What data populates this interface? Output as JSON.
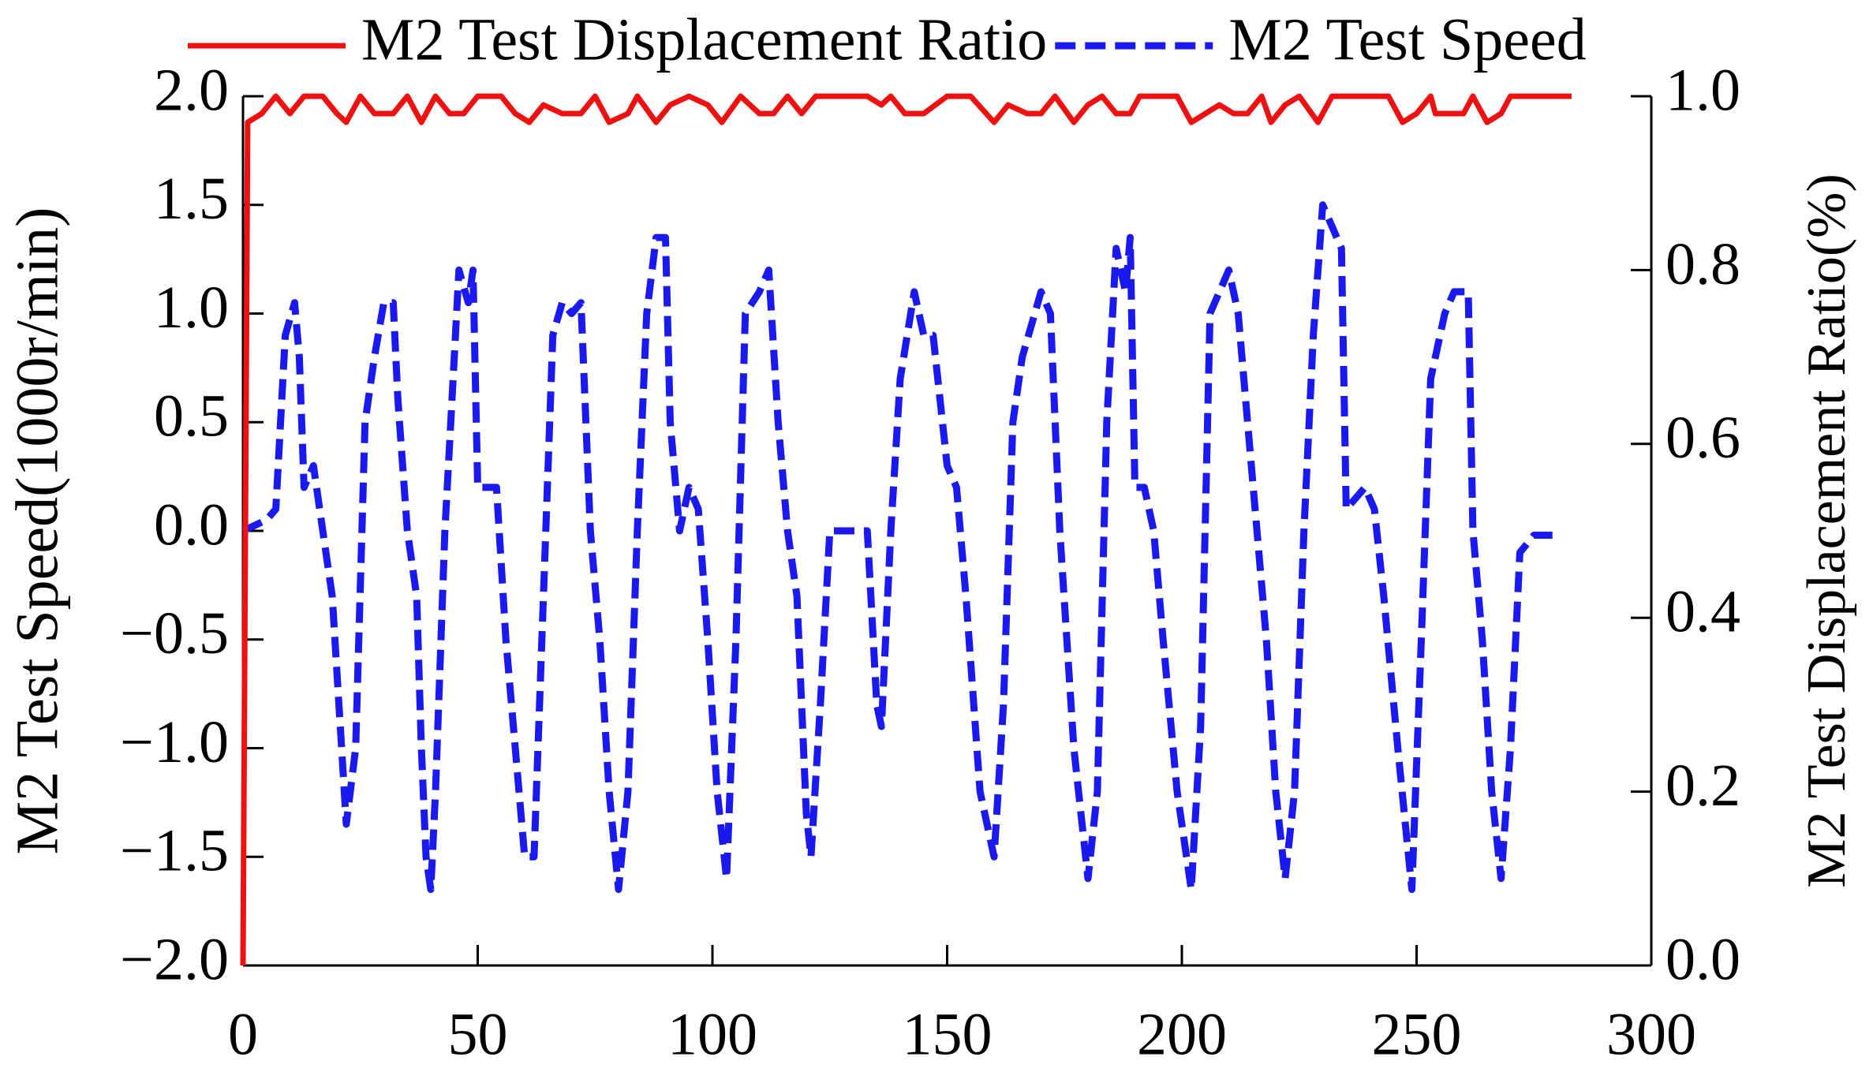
{
  "chart_data": {
    "type": "line",
    "ylabel": "M2 Test Speed(1000r/min)",
    "y2label": "M2 Test Displacement Ratio(%)",
    "xlim": [
      0,
      300
    ],
    "xticks": [
      0,
      50,
      100,
      150,
      200,
      250,
      300
    ],
    "ylim": [
      -2,
      2
    ],
    "yticks": [
      {
        "value": -2,
        "label": "−2.0"
      },
      {
        "value": -1.5,
        "label": "−1.5"
      },
      {
        "value": -1,
        "label": "−1.0"
      },
      {
        "value": -0.5,
        "label": "−0.5"
      },
      {
        "value": 0,
        "label": "0.0"
      },
      {
        "value": 0.5,
        "label": "0.5"
      },
      {
        "value": 1,
        "label": "1.0"
      },
      {
        "value": 1.5,
        "label": "1.5"
      },
      {
        "value": 2,
        "label": "2.0"
      }
    ],
    "y2lim": [
      0,
      1
    ],
    "y2ticks": [
      {
        "value": 0,
        "label": "0.0"
      },
      {
        "value": 0.2,
        "label": "0.2"
      },
      {
        "value": 0.4,
        "label": "0.4"
      },
      {
        "value": 0.6,
        "label": "0.6"
      },
      {
        "value": 0.8,
        "label": "0.8"
      },
      {
        "value": 1,
        "label": "1.0"
      }
    ],
    "legend": "top",
    "series": [
      {
        "name": "M2 Test Displacement Ratio",
        "color": "#ee1111",
        "line_style": "solid",
        "axis": "y2",
        "x": [
          0,
          1,
          4,
          7,
          10,
          13,
          17,
          20,
          22,
          25,
          28,
          32,
          35,
          38,
          41,
          44,
          47,
          50,
          55,
          58,
          61,
          64,
          68,
          72,
          75,
          78,
          82,
          84,
          88,
          91,
          95,
          99,
          102,
          106,
          110,
          113,
          116,
          119,
          122,
          126,
          133,
          136,
          138,
          141,
          145,
          150,
          155,
          160,
          163,
          167,
          170,
          173,
          177,
          180,
          183,
          186,
          189,
          191,
          195,
          199,
          202,
          205,
          208,
          211,
          214,
          217,
          219,
          222,
          225,
          229,
          232,
          236,
          240,
          244,
          247,
          250,
          253,
          254,
          260,
          262,
          265,
          268,
          270,
          283
        ],
        "values": [
          0,
          0.97,
          0.98,
          1.0,
          0.98,
          1.0,
          1.0,
          0.98,
          0.97,
          1.0,
          0.98,
          0.98,
          1.0,
          0.97,
          1.0,
          0.98,
          0.98,
          1.0,
          1.0,
          0.98,
          0.97,
          0.99,
          0.98,
          0.98,
          1.0,
          0.97,
          0.98,
          1.0,
          0.97,
          0.99,
          1.0,
          0.99,
          0.97,
          1.0,
          0.98,
          0.98,
          1.0,
          0.98,
          1.0,
          1.0,
          1.0,
          0.99,
          1.0,
          0.98,
          0.98,
          1.0,
          1.0,
          0.97,
          0.99,
          0.98,
          0.98,
          1.0,
          0.97,
          0.99,
          1.0,
          0.98,
          0.98,
          1.0,
          1.0,
          1.0,
          0.97,
          0.98,
          0.99,
          0.98,
          0.98,
          1.0,
          0.97,
          0.99,
          1.0,
          0.97,
          1.0,
          1.0,
          1.0,
          1.0,
          0.97,
          0.98,
          1.0,
          0.98,
          0.98,
          1.0,
          0.97,
          0.98,
          1.0,
          1.0
        ]
      },
      {
        "name": "M2 Test Speed",
        "color": "#1a1aee",
        "line_style": "dashed",
        "x": [
          0,
          5,
          7,
          9,
          11,
          12,
          13,
          15,
          17,
          19,
          21,
          22,
          24,
          26,
          28,
          30,
          32,
          33,
          35,
          37,
          38,
          39,
          40,
          41,
          43,
          45,
          46,
          48,
          49,
          50,
          52,
          54,
          56,
          58,
          60,
          62,
          64,
          66,
          68,
          70,
          72,
          74,
          76,
          78,
          80,
          82,
          84,
          86,
          88,
          90,
          91,
          93,
          95,
          97,
          99,
          101,
          103,
          105,
          107,
          110,
          112,
          114,
          116,
          118,
          120,
          121,
          123,
          125,
          127,
          133,
          135,
          136,
          138,
          140,
          143,
          145,
          147,
          150,
          152,
          154,
          157,
          160,
          162,
          164,
          166,
          170,
          172,
          174,
          177,
          180,
          182,
          184,
          186,
          188,
          189,
          190,
          192,
          194,
          196,
          199,
          202,
          204,
          206,
          210,
          212,
          214,
          216,
          218,
          220,
          222,
          224,
          226,
          228,
          230,
          232,
          234,
          235,
          237,
          239,
          241,
          243,
          246,
          249,
          251,
          253,
          256,
          258,
          261,
          262,
          264,
          266,
          268,
          270,
          272,
          275,
          280
        ],
        "values": [
          0.0,
          0.05,
          0.1,
          0.9,
          1.05,
          0.8,
          0.2,
          0.3,
          0.0,
          -0.3,
          -1.0,
          -1.35,
          -1.0,
          0.5,
          0.8,
          1.05,
          1.05,
          0.6,
          0.0,
          -0.3,
          -1.0,
          -1.5,
          -1.65,
          -1.2,
          0.0,
          0.8,
          1.2,
          1.05,
          1.2,
          0.2,
          0.2,
          0.2,
          -0.5,
          -1.0,
          -1.5,
          -1.5,
          -0.3,
          0.9,
          1.05,
          1.0,
          1.05,
          0.0,
          -0.5,
          -1.2,
          -1.65,
          -1.2,
          0.0,
          1.0,
          1.35,
          1.35,
          0.5,
          0.0,
          0.2,
          0.1,
          -0.5,
          -1.2,
          -1.6,
          -0.5,
          1.0,
          1.1,
          1.2,
          0.5,
          0.0,
          -0.3,
          -1.3,
          -1.5,
          -0.8,
          0.0,
          0.0,
          0.0,
          -0.8,
          -0.9,
          0.0,
          0.7,
          1.1,
          0.9,
          0.9,
          0.3,
          0.2,
          -0.3,
          -1.2,
          -1.5,
          -0.8,
          0.5,
          0.8,
          1.1,
          1.0,
          0.0,
          -1.0,
          -1.6,
          -1.2,
          0.5,
          1.3,
          1.1,
          1.35,
          0.2,
          0.2,
          0.0,
          -0.5,
          -1.2,
          -1.65,
          -0.9,
          1.0,
          1.2,
          1.0,
          0.5,
          0.0,
          -0.5,
          -1.2,
          -1.6,
          -1.2,
          0.0,
          0.9,
          1.5,
          1.4,
          1.3,
          0.1,
          0.15,
          0.2,
          0.1,
          -0.3,
          -1.0,
          -1.65,
          -0.5,
          0.7,
          1.0,
          1.1,
          1.1,
          0.0,
          -0.5,
          -1.2,
          -1.6,
          -1.0,
          -0.1,
          -0.02,
          -0.02
        ]
      }
    ]
  }
}
